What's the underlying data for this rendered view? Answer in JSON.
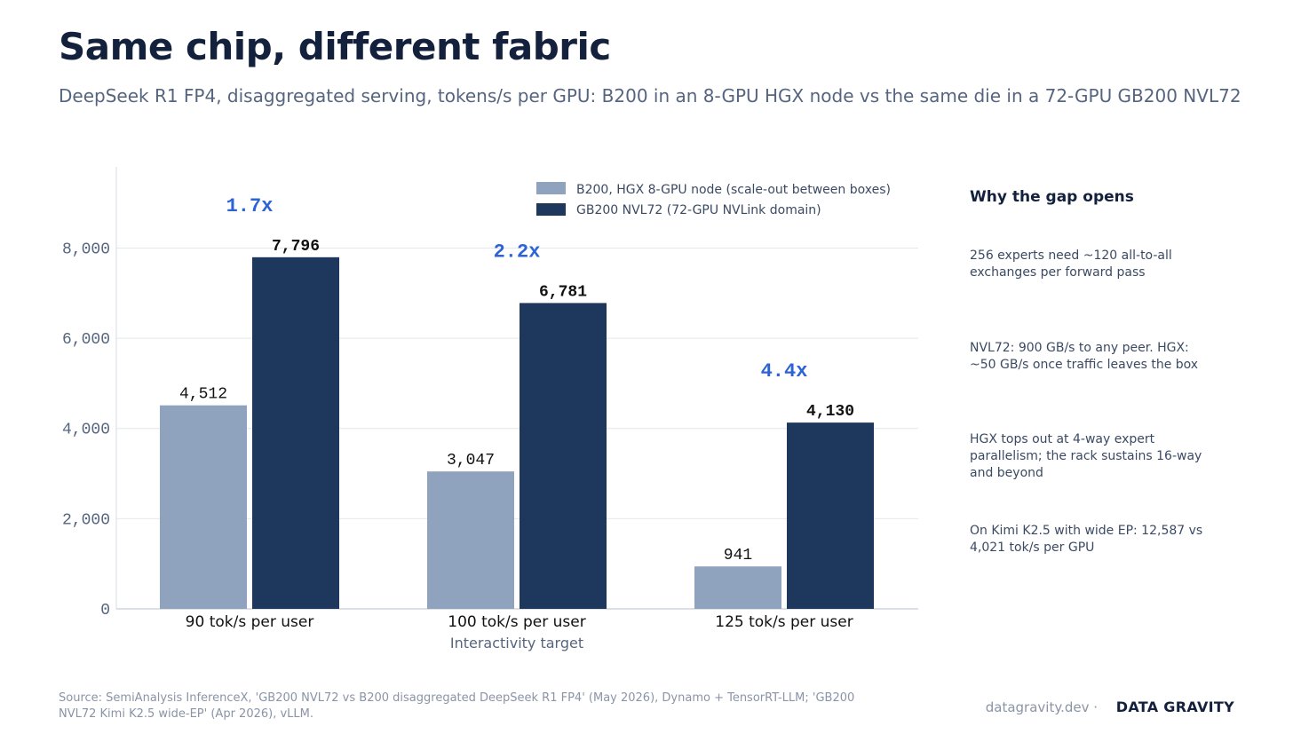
{
  "title": "Same chip, different fabric",
  "subtitle": "DeepSeek R1 FP4, disaggregated serving, tokens/s per GPU: B200 in an 8-GPU HGX node vs the same die in a 72-GPU GB200 NVL72",
  "chart_data": {
    "type": "bar",
    "categories": [
      "90 tok/s per user",
      "100 tok/s per user",
      "125 tok/s per user"
    ],
    "series": [
      {
        "name": "B200, HGX 8-GPU node (scale-out between boxes)",
        "values": [
          4512,
          3047,
          941
        ],
        "labels": [
          "4,512",
          "3,047",
          "941"
        ],
        "color": "#8fa3bf"
      },
      {
        "name": "GB200 NVL72 (72-GPU NVLink domain)",
        "values": [
          7796,
          6781,
          4130
        ],
        "labels": [
          "7,796",
          "6,781",
          "4,130"
        ],
        "color": "#1e375c"
      }
    ],
    "multipliers": [
      "1.7x",
      "2.2x",
      "4.4x"
    ],
    "xlabel": "Interactivity target",
    "ylabel": "",
    "ylim": [
      0,
      9800
    ],
    "yticks": [
      0,
      2000,
      4000,
      6000,
      8000
    ],
    "ytick_labels": [
      "0",
      "2,000",
      "4,000",
      "6,000",
      "8,000"
    ],
    "grid": true,
    "legend_position": "top-right",
    "accent_color": "#2d63d6"
  },
  "sidebar": {
    "title": "Why the gap opens",
    "notes": [
      "256 experts need ~120 all-to-all exchanges per forward pass",
      "NVL72: 900 GB/s to any peer. HGX: ~50 GB/s once traffic leaves the box",
      "HGX tops out at 4-way expert parallelism; the rack sustains 16-way and beyond",
      "On Kimi K2.5 with wide EP: 12,587 vs 4,021 tok/s per GPU"
    ]
  },
  "footer": {
    "source": "Source: SemiAnalysis InferenceX, 'GB200 NVL72 vs B200 disaggregated DeepSeek R1 FP4' (May 2026), Dynamo + TensorRT-LLM; 'GB200 NVL72 Kimi K2.5 wide-EP' (Apr 2026), vLLM.",
    "site": "datagravity.dev ·",
    "brand": "DATA GRAVITY"
  }
}
